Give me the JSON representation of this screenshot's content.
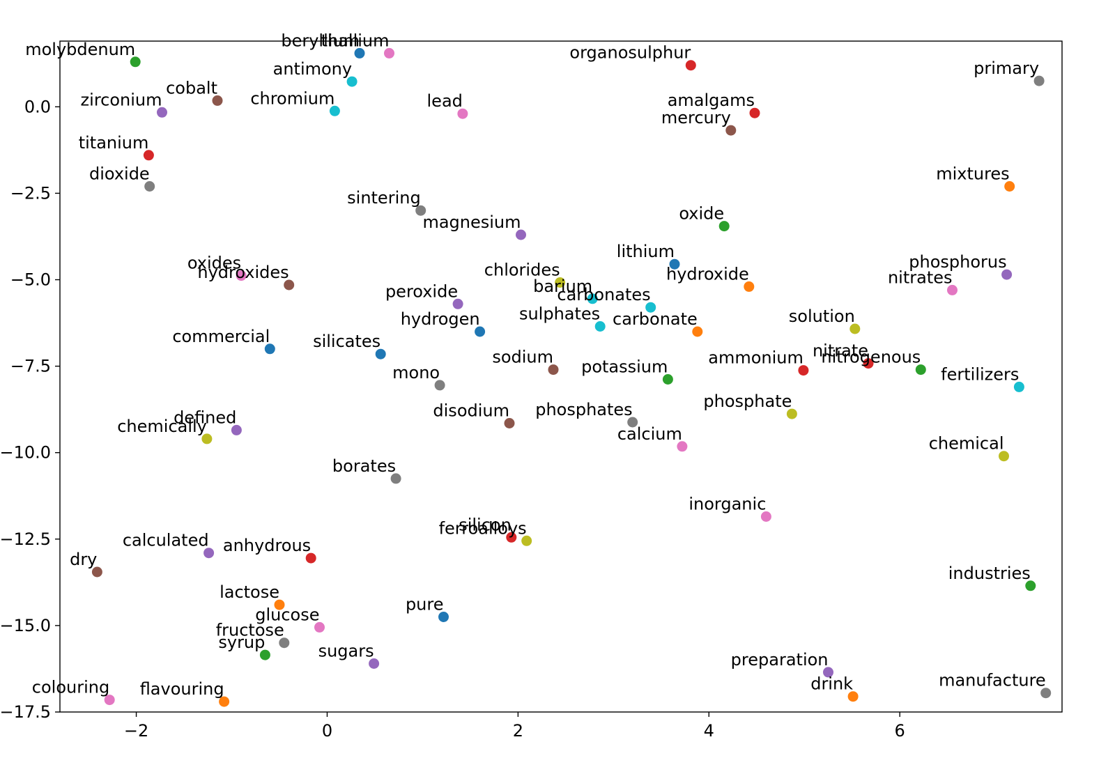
{
  "chart_data": {
    "type": "scatter",
    "title": "",
    "xlabel": "",
    "ylabel": "",
    "xlim": [
      -2.8,
      7.7
    ],
    "ylim": [
      -17.5,
      1.9
    ],
    "grid": false,
    "legend": "none",
    "x_ticks": [
      {
        "value": -2,
        "label": "−2"
      },
      {
        "value": 0,
        "label": "0"
      },
      {
        "value": 2,
        "label": "2"
      },
      {
        "value": 4,
        "label": "4"
      },
      {
        "value": 6,
        "label": "6"
      }
    ],
    "y_ticks": [
      {
        "value": 0,
        "label": "0.0"
      },
      {
        "value": -2.5,
        "label": "−2.5"
      },
      {
        "value": -5,
        "label": "−5.0"
      },
      {
        "value": -7.5,
        "label": "−7.5"
      },
      {
        "value": -10,
        "label": "−10.0"
      },
      {
        "value": -12.5,
        "label": "−12.5"
      },
      {
        "value": -15,
        "label": "−15.0"
      },
      {
        "value": -17.5,
        "label": "−17.5"
      }
    ],
    "points": [
      {
        "label": "molybdenum",
        "x": -2.01,
        "y": 1.3,
        "color": "#2ca02c"
      },
      {
        "label": "beryllium",
        "x": 0.34,
        "y": 1.55,
        "color": "#1f77b4"
      },
      {
        "label": "thallium",
        "x": 0.65,
        "y": 1.55,
        "color": "#e377c2"
      },
      {
        "label": "antimony",
        "x": 0.26,
        "y": 0.73,
        "color": "#17becf"
      },
      {
        "label": "organosulphur",
        "x": 3.81,
        "y": 1.2,
        "color": "#d62728"
      },
      {
        "label": "primary",
        "x": 7.46,
        "y": 0.75,
        "color": "#7f7f7f"
      },
      {
        "label": "cobalt",
        "x": -1.15,
        "y": 0.18,
        "color": "#8c564b"
      },
      {
        "label": "zirconium",
        "x": -1.73,
        "y": -0.16,
        "color": "#9467bd"
      },
      {
        "label": "chromium",
        "x": 0.08,
        "y": -0.12,
        "color": "#17becf"
      },
      {
        "label": "lead",
        "x": 1.42,
        "y": -0.2,
        "color": "#e377c2"
      },
      {
        "label": "amalgams",
        "x": 4.48,
        "y": -0.18,
        "color": "#d62728"
      },
      {
        "label": "mercury",
        "x": 4.23,
        "y": -0.68,
        "color": "#8c564b"
      },
      {
        "label": "titanium",
        "x": -1.87,
        "y": -1.4,
        "color": "#d62728"
      },
      {
        "label": "dioxide",
        "x": -1.86,
        "y": -2.3,
        "color": "#7f7f7f"
      },
      {
        "label": "mixtures",
        "x": 7.15,
        "y": -2.3,
        "color": "#ff7f0e"
      },
      {
        "label": "sintering",
        "x": 0.98,
        "y": -3.0,
        "color": "#7f7f7f"
      },
      {
        "label": "oxide",
        "x": 4.16,
        "y": -3.45,
        "color": "#2ca02c"
      },
      {
        "label": "magnesium",
        "x": 2.03,
        "y": -3.7,
        "color": "#9467bd"
      },
      {
        "label": "lithium",
        "x": 3.64,
        "y": -4.55,
        "color": "#1f77b4"
      },
      {
        "label": "phosphorus",
        "x": 7.12,
        "y": -4.85,
        "color": "#9467bd"
      },
      {
        "label": "oxides",
        "x": -0.9,
        "y": -4.88,
        "color": "#e377c2"
      },
      {
        "label": "hydroxides",
        "x": -0.4,
        "y": -5.15,
        "color": "#8c564b"
      },
      {
        "label": "chlorides",
        "x": 2.44,
        "y": -5.08,
        "color": "#bcbd22"
      },
      {
        "label": "hydroxide",
        "x": 4.42,
        "y": -5.2,
        "color": "#ff7f0e"
      },
      {
        "label": "nitrates",
        "x": 6.55,
        "y": -5.3,
        "color": "#e377c2"
      },
      {
        "label": "barium",
        "x": 2.78,
        "y": -5.55,
        "color": "#17becf"
      },
      {
        "label": "carbonates",
        "x": 3.39,
        "y": -5.8,
        "color": "#17becf"
      },
      {
        "label": "peroxide",
        "x": 1.37,
        "y": -5.7,
        "color": "#9467bd"
      },
      {
        "label": "sulphates",
        "x": 2.86,
        "y": -6.35,
        "color": "#17becf"
      },
      {
        "label": "hydrogen",
        "x": 1.6,
        "y": -6.5,
        "color": "#1f77b4"
      },
      {
        "label": "carbonate",
        "x": 3.88,
        "y": -6.5,
        "color": "#ff7f0e"
      },
      {
        "label": "solution",
        "x": 5.53,
        "y": -6.42,
        "color": "#bcbd22"
      },
      {
        "label": "commercial",
        "x": -0.6,
        "y": -7.0,
        "color": "#1f77b4"
      },
      {
        "label": "silicates",
        "x": 0.56,
        "y": -7.15,
        "color": "#1f77b4"
      },
      {
        "label": "nitrate",
        "x": 5.67,
        "y": -7.42,
        "color": "#d62728"
      },
      {
        "label": "nitrogenous",
        "x": 6.22,
        "y": -7.6,
        "color": "#2ca02c"
      },
      {
        "label": "sodium",
        "x": 2.37,
        "y": -7.6,
        "color": "#8c564b"
      },
      {
        "label": "ammonium",
        "x": 4.99,
        "y": -7.62,
        "color": "#d62728"
      },
      {
        "label": "potassium",
        "x": 3.57,
        "y": -7.88,
        "color": "#2ca02c"
      },
      {
        "label": "mono",
        "x": 1.18,
        "y": -8.05,
        "color": "#7f7f7f"
      },
      {
        "label": "fertilizers",
        "x": 7.25,
        "y": -8.1,
        "color": "#17becf"
      },
      {
        "label": "phosphate",
        "x": 4.87,
        "y": -8.88,
        "color": "#bcbd22"
      },
      {
        "label": "disodium",
        "x": 1.91,
        "y": -9.15,
        "color": "#8c564b"
      },
      {
        "label": "phosphates",
        "x": 3.2,
        "y": -9.12,
        "color": "#7f7f7f"
      },
      {
        "label": "defined",
        "x": -0.95,
        "y": -9.35,
        "color": "#9467bd"
      },
      {
        "label": "chemically",
        "x": -1.26,
        "y": -9.6,
        "color": "#bcbd22"
      },
      {
        "label": "calcium",
        "x": 3.72,
        "y": -9.82,
        "color": "#e377c2"
      },
      {
        "label": "chemical",
        "x": 7.09,
        "y": -10.1,
        "color": "#bcbd22"
      },
      {
        "label": "borates",
        "x": 0.72,
        "y": -10.75,
        "color": "#7f7f7f"
      },
      {
        "label": "inorganic",
        "x": 4.6,
        "y": -11.85,
        "color": "#e377c2"
      },
      {
        "label": "silicon",
        "x": 1.93,
        "y": -12.45,
        "color": "#d62728"
      },
      {
        "label": "ferroalloys",
        "x": 2.09,
        "y": -12.55,
        "color": "#bcbd22"
      },
      {
        "label": "calculated",
        "x": -1.24,
        "y": -12.9,
        "color": "#9467bd"
      },
      {
        "label": "anhydrous",
        "x": -0.17,
        "y": -13.05,
        "color": "#d62728"
      },
      {
        "label": "dry",
        "x": -2.41,
        "y": -13.45,
        "color": "#8c564b"
      },
      {
        "label": "industries",
        "x": 7.37,
        "y": -13.85,
        "color": "#2ca02c"
      },
      {
        "label": "lactose",
        "x": -0.5,
        "y": -14.4,
        "color": "#ff7f0e"
      },
      {
        "label": "pure",
        "x": 1.22,
        "y": -14.75,
        "color": "#1f77b4"
      },
      {
        "label": "glucose",
        "x": -0.08,
        "y": -15.05,
        "color": "#e377c2"
      },
      {
        "label": "fructose",
        "x": -0.45,
        "y": -15.5,
        "color": "#7f7f7f"
      },
      {
        "label": "syrup",
        "x": -0.65,
        "y": -15.85,
        "color": "#2ca02c"
      },
      {
        "label": "sugars",
        "x": 0.49,
        "y": -16.1,
        "color": "#9467bd"
      },
      {
        "label": "preparation",
        "x": 5.25,
        "y": -16.35,
        "color": "#9467bd"
      },
      {
        "label": "manufacture",
        "x": 7.53,
        "y": -16.95,
        "color": "#7f7f7f"
      },
      {
        "label": "drink",
        "x": 5.51,
        "y": -17.05,
        "color": "#ff7f0e"
      },
      {
        "label": "colouring",
        "x": -2.28,
        "y": -17.15,
        "color": "#e377c2"
      },
      {
        "label": "flavouring",
        "x": -1.08,
        "y": -17.2,
        "color": "#ff7f0e"
      }
    ]
  }
}
